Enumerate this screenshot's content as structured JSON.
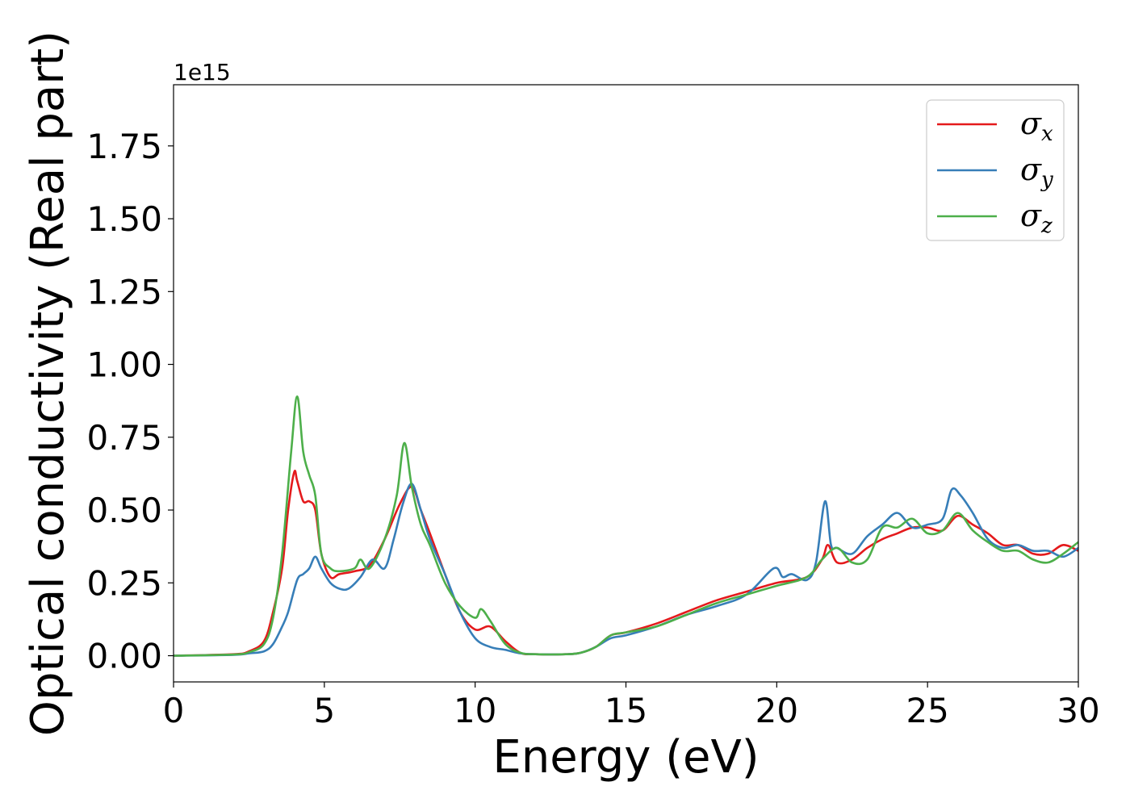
{
  "chart_data": {
    "type": "line",
    "title": "",
    "xlabel": "Energy (eV)",
    "ylabel": "Optical conductivity (Real part)",
    "y_offset_text": "1e15",
    "xlim": [
      0,
      30
    ],
    "ylim": [
      -0.09,
      1.96
    ],
    "x_ticks": [
      0,
      5,
      10,
      15,
      20,
      25,
      30
    ],
    "x_tick_labels": [
      "0",
      "5",
      "10",
      "15",
      "20",
      "25",
      "30"
    ],
    "y_ticks": [
      0.0,
      0.25,
      0.5,
      0.75,
      1.0,
      1.25,
      1.5,
      1.75
    ],
    "y_tick_labels": [
      "0.00",
      "0.25",
      "0.50",
      "0.75",
      "1.00",
      "1.25",
      "1.50",
      "1.75"
    ],
    "grid": false,
    "legend_position": "top-right",
    "series": [
      {
        "name": "σx",
        "symbol": "σ",
        "subscript": "x",
        "color": "#e41a1c",
        "x": [
          0,
          2,
          2.5,
          3,
          3.3,
          3.6,
          3.8,
          4.0,
          4.1,
          4.3,
          4.5,
          4.7,
          4.9,
          5.2,
          5.5,
          6,
          6.5,
          7,
          7.5,
          7.9,
          8.2,
          8.5,
          9,
          9.5,
          10,
          10.5,
          11,
          11.5,
          12,
          13,
          13.5,
          14,
          14.5,
          15,
          16,
          17,
          18,
          19,
          20,
          21,
          21.5,
          21.7,
          22,
          22.5,
          23,
          23.5,
          24,
          24.5,
          25,
          25.5,
          26,
          26.5,
          27,
          27.5,
          28,
          28.5,
          29,
          29.5,
          30
        ],
        "y": [
          0,
          0.005,
          0.015,
          0.05,
          0.15,
          0.3,
          0.5,
          0.63,
          0.6,
          0.53,
          0.53,
          0.5,
          0.35,
          0.27,
          0.28,
          0.29,
          0.31,
          0.4,
          0.52,
          0.58,
          0.5,
          0.42,
          0.28,
          0.15,
          0.09,
          0.1,
          0.05,
          0.01,
          0.005,
          0.005,
          0.01,
          0.03,
          0.07,
          0.08,
          0.11,
          0.15,
          0.19,
          0.22,
          0.25,
          0.27,
          0.33,
          0.38,
          0.32,
          0.33,
          0.37,
          0.4,
          0.42,
          0.44,
          0.44,
          0.43,
          0.48,
          0.45,
          0.42,
          0.38,
          0.38,
          0.35,
          0.35,
          0.38,
          0.36
        ]
      },
      {
        "name": "σy",
        "symbol": "σ",
        "subscript": "y",
        "color": "#377eb8",
        "x": [
          0,
          2,
          2.5,
          3,
          3.3,
          3.6,
          3.8,
          4.1,
          4.3,
          4.5,
          4.7,
          4.9,
          5.2,
          5.5,
          5.8,
          6.2,
          6.6,
          7,
          7.3,
          7.6,
          7.9,
          8.2,
          8.5,
          9,
          9.5,
          10,
          10.5,
          11,
          11.5,
          12,
          13,
          13.5,
          14,
          14.5,
          15,
          16,
          17,
          18,
          19,
          19.9,
          20.2,
          20.5,
          21,
          21.3,
          21.6,
          21.8,
          22,
          22.5,
          23,
          23.5,
          24,
          24.5,
          25,
          25.5,
          25.8,
          26.1,
          26.5,
          27,
          27.5,
          28,
          28.5,
          29,
          29.5,
          30
        ],
        "y": [
          0,
          0.003,
          0.008,
          0.015,
          0.04,
          0.1,
          0.15,
          0.26,
          0.28,
          0.3,
          0.34,
          0.3,
          0.25,
          0.23,
          0.23,
          0.27,
          0.33,
          0.3,
          0.4,
          0.52,
          0.59,
          0.5,
          0.4,
          0.28,
          0.15,
          0.06,
          0.03,
          0.02,
          0.008,
          0.005,
          0.005,
          0.01,
          0.03,
          0.06,
          0.07,
          0.1,
          0.14,
          0.17,
          0.21,
          0.3,
          0.27,
          0.28,
          0.26,
          0.32,
          0.53,
          0.38,
          0.37,
          0.35,
          0.41,
          0.45,
          0.49,
          0.44,
          0.45,
          0.47,
          0.57,
          0.55,
          0.49,
          0.4,
          0.37,
          0.38,
          0.36,
          0.36,
          0.34,
          0.37
        ]
      },
      {
        "name": "σz",
        "symbol": "σ",
        "subscript": "z",
        "color": "#4daf4a",
        "x": [
          0,
          2,
          2.5,
          3,
          3.3,
          3.6,
          3.9,
          4.1,
          4.3,
          4.5,
          4.7,
          4.9,
          5.2,
          5.5,
          6,
          6.2,
          6.5,
          7,
          7.4,
          7.65,
          7.9,
          8.2,
          8.5,
          9,
          9.5,
          10,
          10.2,
          10.5,
          11,
          11.5,
          12,
          13,
          13.5,
          14,
          14.5,
          15,
          16,
          17,
          18,
          19,
          20,
          21,
          21.5,
          22,
          22.5,
          23,
          23.5,
          24,
          24.5,
          25,
          25.5,
          26,
          26.5,
          27,
          27.5,
          28,
          28.5,
          29,
          29.5,
          30
        ],
        "y": [
          0,
          0.004,
          0.012,
          0.04,
          0.13,
          0.35,
          0.7,
          0.89,
          0.7,
          0.62,
          0.55,
          0.35,
          0.3,
          0.29,
          0.3,
          0.33,
          0.3,
          0.4,
          0.55,
          0.73,
          0.58,
          0.45,
          0.38,
          0.25,
          0.17,
          0.13,
          0.16,
          0.12,
          0.04,
          0.01,
          0.005,
          0.005,
          0.01,
          0.03,
          0.07,
          0.08,
          0.1,
          0.14,
          0.18,
          0.21,
          0.24,
          0.27,
          0.33,
          0.37,
          0.32,
          0.33,
          0.44,
          0.44,
          0.47,
          0.42,
          0.43,
          0.49,
          0.43,
          0.39,
          0.36,
          0.36,
          0.33,
          0.32,
          0.35,
          0.39
        ]
      }
    ]
  }
}
